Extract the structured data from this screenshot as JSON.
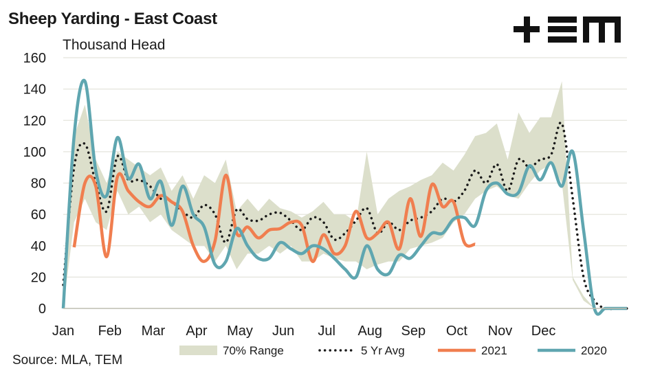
{
  "header": {
    "title": "Sheep Yarding - East Coast",
    "subtitle": "Thousand Head"
  },
  "footer": {
    "source": "Source: MLA, TEM"
  },
  "logo": {
    "text": "TEM"
  },
  "colors": {
    "range": "#dcdfcb",
    "avg": "#1a1a1a",
    "y2021": "#f07e4f",
    "y2020": "#5fa6b0",
    "grid": "#e4e4dc"
  },
  "chart_data": {
    "type": "line",
    "title": "Sheep Yarding - East Coast",
    "ylabel": "Thousand Head",
    "ylim": [
      0,
      160
    ],
    "yticks": [
      0,
      20,
      40,
      60,
      80,
      100,
      120,
      140,
      160
    ],
    "xlim": [
      0,
      52
    ],
    "xticks": [
      {
        "label": "Jan",
        "x": 0
      },
      {
        "label": "Feb",
        "x": 4.3
      },
      {
        "label": "Mar",
        "x": 8.3
      },
      {
        "label": "Apr",
        "x": 12.3
      },
      {
        "label": "May",
        "x": 16.3
      },
      {
        "label": "Jun",
        "x": 20.3
      },
      {
        "label": "Jul",
        "x": 24.3
      },
      {
        "label": "Aug",
        "x": 28.3
      },
      {
        "label": "Sep",
        "x": 32.3
      },
      {
        "label": "Oct",
        "x": 36.3
      },
      {
        "label": "Nov",
        "x": 40.3
      },
      {
        "label": "Dec",
        "x": 44.3
      }
    ],
    "grid": "horizontal",
    "legend_position": "bottom",
    "series": [
      {
        "name": "70% Range",
        "kind": "band",
        "x": [
          0,
          1,
          2,
          3,
          4,
          5,
          6,
          7,
          8,
          9,
          10,
          11,
          12,
          13,
          14,
          15,
          16,
          17,
          18,
          19,
          20,
          21,
          22,
          23,
          24,
          25,
          26,
          27,
          28,
          29,
          30,
          31,
          32,
          33,
          34,
          35,
          36,
          37,
          38,
          39,
          40,
          41,
          42,
          43,
          44,
          45,
          46,
          47,
          48,
          49,
          50,
          51,
          52
        ],
        "upper": [
          15,
          110,
          130,
          95,
          80,
          100,
          95,
          90,
          85,
          90,
          75,
          85,
          70,
          85,
          80,
          95,
          62,
          70,
          62,
          70,
          64,
          62,
          58,
          62,
          68,
          60,
          60,
          55,
          100,
          60,
          70,
          75,
          78,
          82,
          85,
          93,
          88,
          98,
          110,
          112,
          118,
          95,
          125,
          112,
          122,
          122,
          145,
          20,
          8,
          0,
          0,
          0,
          0
        ],
        "lower": [
          0,
          55,
          70,
          55,
          50,
          75,
          60,
          65,
          55,
          60,
          50,
          45,
          40,
          40,
          30,
          40,
          25,
          35,
          35,
          40,
          35,
          40,
          30,
          30,
          35,
          32,
          30,
          30,
          25,
          28,
          30,
          30,
          38,
          40,
          42,
          45,
          55,
          60,
          70,
          75,
          78,
          72,
          70,
          80,
          88,
          92,
          80,
          18,
          5,
          0,
          0,
          0,
          0
        ]
      },
      {
        "name": "5 Yr Avg",
        "x": [
          0,
          1,
          2,
          3,
          4,
          5,
          6,
          7,
          8,
          9,
          10,
          11,
          12,
          13,
          14,
          15,
          16,
          17,
          18,
          19,
          20,
          21,
          22,
          23,
          24,
          25,
          26,
          27,
          28,
          29,
          30,
          31,
          32,
          33,
          34,
          35,
          36,
          37,
          38,
          39,
          40,
          41,
          42,
          43,
          44,
          45,
          46,
          47,
          48,
          49,
          50,
          51,
          52
        ],
        "values": [
          15,
          90,
          105,
          80,
          62,
          97,
          82,
          82,
          78,
          70,
          68,
          62,
          58,
          66,
          60,
          42,
          63,
          57,
          56,
          60,
          61,
          56,
          50,
          58,
          55,
          44,
          48,
          56,
          64,
          48,
          55,
          50,
          56,
          58,
          62,
          70,
          68,
          75,
          88,
          80,
          92,
          75,
          95,
          90,
          95,
          98,
          118,
          70,
          20,
          5,
          0,
          0,
          0
        ]
      },
      {
        "name": "2021",
        "x": [
          1,
          2,
          3,
          4,
          5,
          6,
          7,
          8,
          9,
          10,
          11,
          12,
          13,
          14,
          15,
          16,
          17,
          18,
          19,
          20,
          21,
          22,
          23,
          24,
          25,
          26,
          27,
          28,
          29,
          30,
          31,
          32,
          33,
          34,
          35,
          36,
          37,
          38
        ],
        "values": [
          39,
          80,
          78,
          33,
          84,
          75,
          68,
          65,
          72,
          68,
          62,
          40,
          30,
          43,
          85,
          48,
          52,
          45,
          50,
          51,
          55,
          53,
          30,
          47,
          35,
          40,
          62,
          45,
          48,
          55,
          38,
          70,
          46,
          79,
          65,
          68,
          42,
          41
        ]
      },
      {
        "name": "2020",
        "x": [
          0,
          1,
          2,
          3,
          4,
          5,
          6,
          7,
          8,
          9,
          10,
          11,
          12,
          13,
          14,
          15,
          16,
          17,
          18,
          19,
          20,
          21,
          22,
          23,
          24,
          25,
          26,
          27,
          28,
          29,
          30,
          31,
          32,
          33,
          34,
          35,
          36,
          37,
          38,
          39,
          40,
          41,
          42,
          43,
          44,
          45,
          46,
          47,
          48,
          49,
          50,
          51,
          52
        ],
        "values": [
          0,
          110,
          145,
          88,
          72,
          109,
          83,
          92,
          70,
          81,
          53,
          78,
          60,
          52,
          28,
          30,
          51,
          40,
          32,
          32,
          42,
          38,
          35,
          40,
          38,
          32,
          25,
          20,
          40,
          25,
          22,
          34,
          32,
          40,
          48,
          48,
          57,
          58,
          53,
          75,
          80,
          73,
          74,
          91,
          82,
          93,
          78,
          100,
          50,
          0,
          0,
          0,
          0
        ]
      }
    ]
  }
}
